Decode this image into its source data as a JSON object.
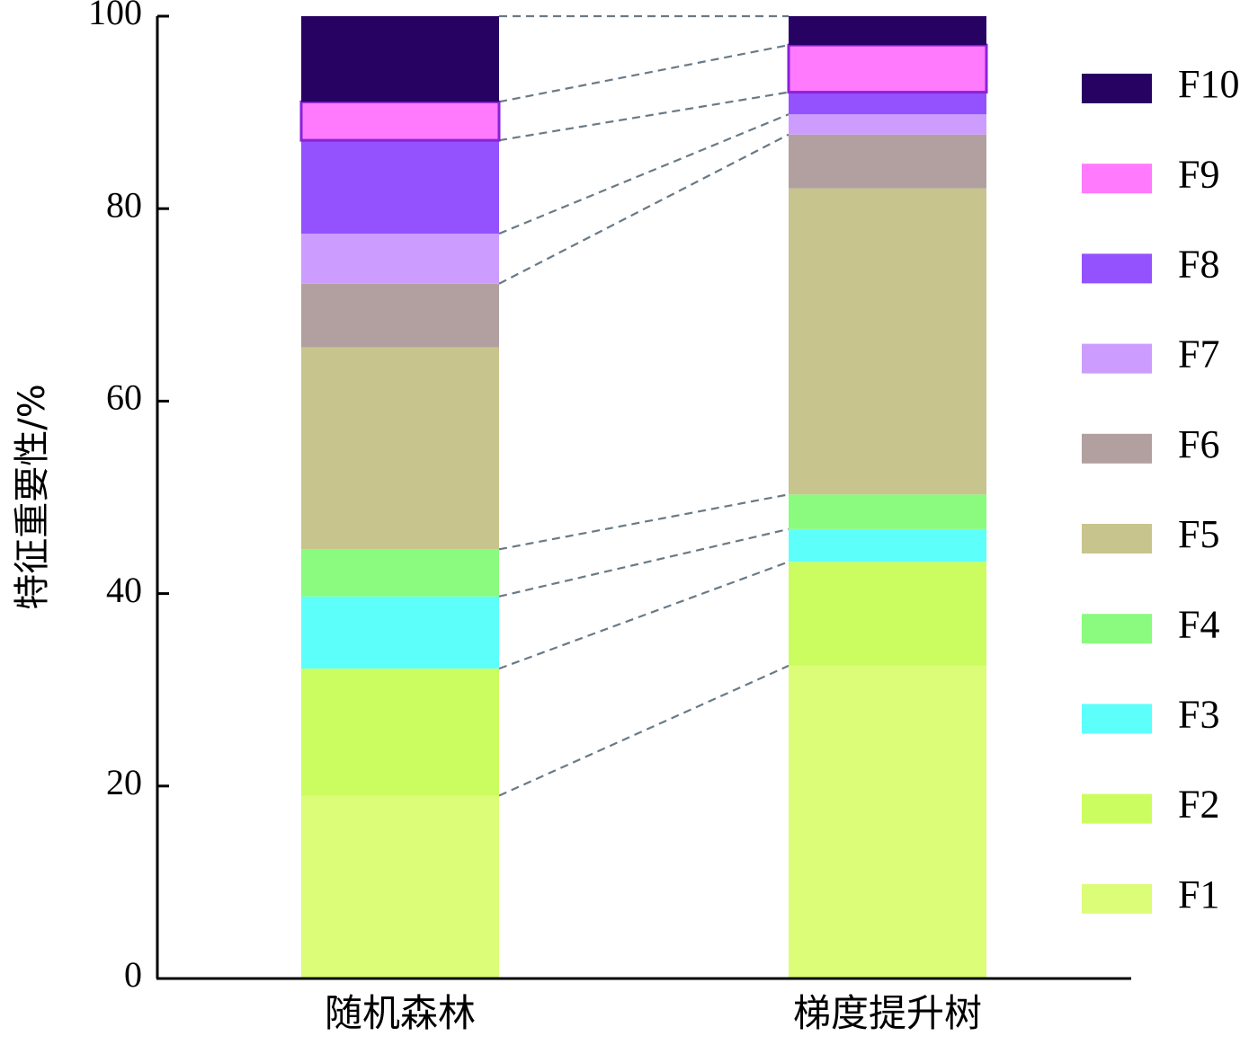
{
  "chart_data": {
    "type": "bar",
    "stacked": true,
    "title": "",
    "xlabel": "",
    "ylabel": "特征重要性/%",
    "ylim": [
      0,
      100
    ],
    "yticks": [
      0,
      20,
      40,
      60,
      80,
      100
    ],
    "categories": [
      "随机森林",
      "梯度提升树"
    ],
    "series": [
      {
        "name": "F1",
        "color": "#dcfd78",
        "values": [
          19.0,
          32.5
        ]
      },
      {
        "name": "F2",
        "color": "#ccfd60",
        "values": [
          13.2,
          10.8
        ]
      },
      {
        "name": "F3",
        "color": "#5dfffb",
        "values": [
          7.5,
          3.4
        ]
      },
      {
        "name": "F4",
        "color": "#8afb7e",
        "values": [
          4.9,
          3.6
        ]
      },
      {
        "name": "F5",
        "color": "#c8c48d",
        "values": [
          21.0,
          31.8
        ]
      },
      {
        "name": "F6",
        "color": "#b2a0a0",
        "values": [
          6.6,
          5.6
        ]
      },
      {
        "name": "F7",
        "color": "#cc9dfe",
        "values": [
          5.2,
          2.1
        ]
      },
      {
        "name": "F8",
        "color": "#9452fe",
        "values": [
          9.7,
          2.3
        ]
      },
      {
        "name": "F9",
        "color": "#ff7afc",
        "values": [
          4.0,
          4.9
        ]
      },
      {
        "name": "F10",
        "color": "#270262",
        "values": [
          8.9,
          3.0
        ]
      }
    ],
    "legend_position": "right",
    "connector_lines": "dashed",
    "connector_color": "#6a7a85",
    "grid": false
  }
}
